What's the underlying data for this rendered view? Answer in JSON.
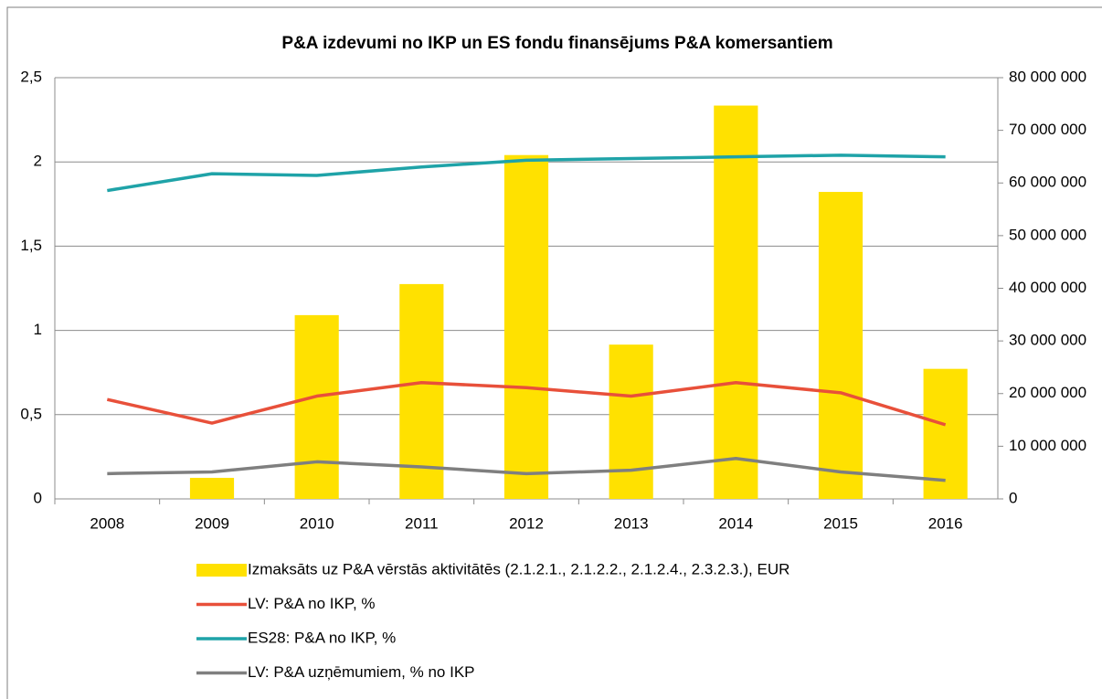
{
  "chart_data": {
    "type": "bar",
    "title": "P&A izdevumi no IKP un ES fondu finansējums P&A komersantiem",
    "categories": [
      "2008",
      "2009",
      "2010",
      "2011",
      "2012",
      "2013",
      "2014",
      "2015",
      "2016"
    ],
    "series": [
      {
        "name": "Izmaksāts uz P&A vērstās aktivitātēs (2.1.2.1., 2.1.2.2., 2.1.2.4., 2.3.2.3.), EUR",
        "type": "bar",
        "axis": "y2",
        "color": "#ffe100",
        "values": [
          null,
          4000000,
          34900000,
          40800000,
          65300000,
          29300000,
          74700000,
          58300000,
          24700000
        ]
      },
      {
        "name": "LV: P&A no IKP, %",
        "type": "line",
        "color": "#e8503a",
        "values": [
          0.59,
          0.45,
          0.61,
          0.69,
          0.66,
          0.61,
          0.69,
          0.63,
          0.44
        ]
      },
      {
        "name": "ES28: P&A no IKP, %",
        "type": "line",
        "color": "#1fa3a8",
        "values": [
          1.83,
          1.93,
          1.92,
          1.97,
          2.01,
          2.02,
          2.03,
          2.04,
          2.03
        ]
      },
      {
        "name": "LV: P&A uzņēmumiem, % no IKP",
        "type": "line",
        "color": "#7f7f7f",
        "values": [
          0.15,
          0.16,
          0.22,
          0.19,
          0.15,
          0.17,
          0.24,
          0.16,
          0.11
        ]
      }
    ],
    "ylim": [
      0,
      2.5
    ],
    "yticks": [
      0,
      {
        "value": 0.5,
        "label": "0,5"
      },
      1,
      {
        "value": 1.5,
        "label": "1,5"
      },
      2,
      {
        "value": 2.5,
        "label": "2,5"
      }
    ],
    "y2lim": [
      0,
      80000000
    ],
    "y2ticks": [
      0,
      {
        "value": 10000000,
        "label": "10 000 000"
      },
      {
        "value": 20000000,
        "label": "20 000 000"
      },
      {
        "value": 30000000,
        "label": "30 000 000"
      },
      {
        "value": 40000000,
        "label": "40 000 000"
      },
      {
        "value": 50000000,
        "label": "50 000 000"
      },
      {
        "value": 60000000,
        "label": "60 000 000"
      },
      {
        "value": 70000000,
        "label": "70 000 000"
      },
      {
        "value": 80000000,
        "label": "80 000 000"
      }
    ],
    "grid": true,
    "legend": "bottom"
  }
}
